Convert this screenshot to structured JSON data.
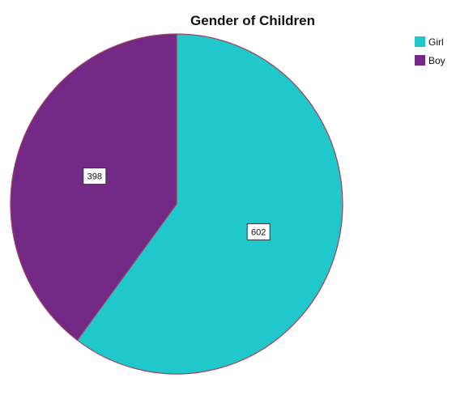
{
  "chart_data": {
    "type": "pie",
    "title": "Gender of Children",
    "categories": [
      "Girl",
      "Boy"
    ],
    "values": [
      602,
      398
    ],
    "colors": [
      "#21c8cb",
      "#722a86"
    ],
    "outline_color": "#a04060",
    "data_labels": [
      "602",
      "398"
    ],
    "legend": {
      "position": "top-right",
      "entries": [
        "Girl",
        "Boy"
      ]
    }
  }
}
